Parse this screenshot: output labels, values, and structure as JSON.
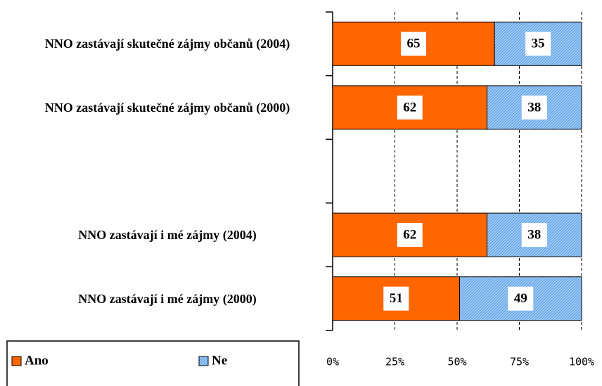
{
  "chart_data": {
    "type": "bar",
    "orientation": "horizontal",
    "stacked": true,
    "categories": [
      "NNO zastávají skutečné zájmy občanů (2004)",
      "NNO zastávají skutečné zájmy občanů (2000)",
      null,
      "NNO zastávají i mé zájmy (2004)",
      "NNO zastávají i mé zájmy (2000)"
    ],
    "series": [
      {
        "name": "Ano",
        "color": "#ff6600",
        "values": [
          65,
          62,
          null,
          62,
          51
        ]
      },
      {
        "name": "Ne",
        "color": "#99ccff",
        "values": [
          35,
          38,
          null,
          38,
          49
        ]
      }
    ],
    "xlim": [
      0,
      100
    ],
    "xticks": [
      {
        "value": 0,
        "label": "0%"
      },
      {
        "value": 25,
        "label": "25%"
      },
      {
        "value": 50,
        "label": "50%"
      },
      {
        "value": 75,
        "label": "75%"
      },
      {
        "value": 100,
        "label": "100%"
      }
    ],
    "grid": true,
    "legend": "bottom-left"
  }
}
